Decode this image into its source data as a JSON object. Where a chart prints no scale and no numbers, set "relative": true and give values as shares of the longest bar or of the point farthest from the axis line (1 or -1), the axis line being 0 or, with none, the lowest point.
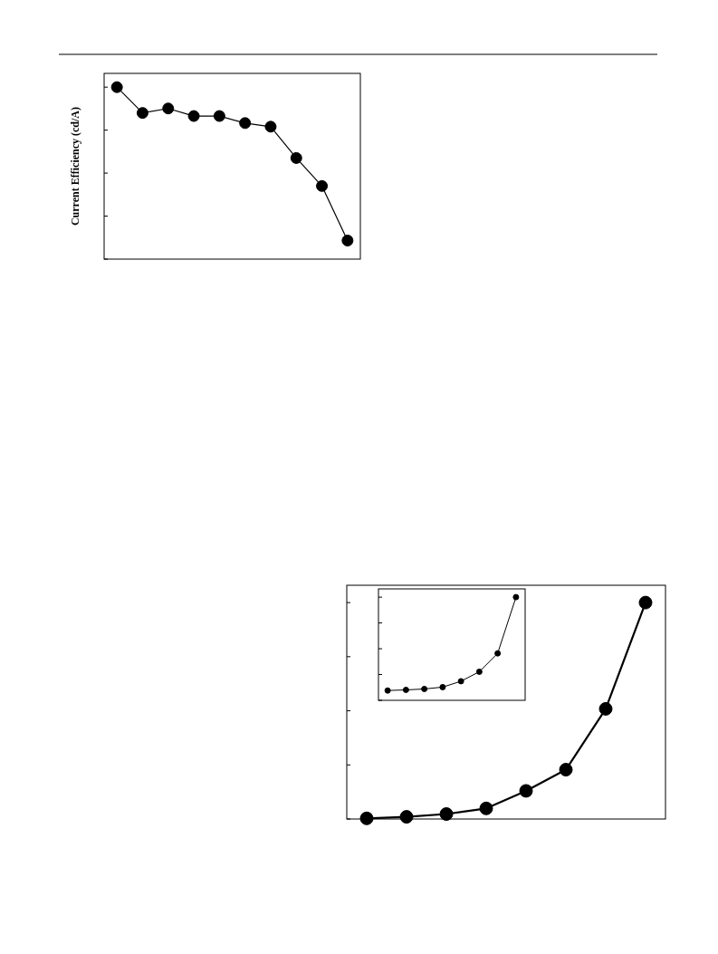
{
  "chart_data": [
    {
      "type": "line",
      "ylabel": "Current Efficiency (cd/A)",
      "relative": true,
      "marker": "circle",
      "tick_labels": false,
      "categories": [
        null,
        null,
        null,
        null,
        null,
        null,
        null,
        null,
        null,
        null
      ],
      "series": [
        {
          "color": "#000000",
          "values": [
            1.0,
            0.85,
            0.876,
            0.832,
            0.832,
            0.791,
            0.77,
            0.588,
            0.425,
            0.108
          ]
        }
      ]
    },
    {
      "type": "line",
      "relative": true,
      "marker": "circle",
      "tick_labels": false,
      "categories": [
        null,
        null,
        null,
        null,
        null,
        null,
        null,
        null
      ],
      "series": [
        {
          "color": "#000000",
          "values": [
            0.003,
            0.01,
            0.023,
            0.049,
            0.13,
            0.228,
            0.509,
            1.0
          ]
        }
      ]
    },
    {
      "type": "line",
      "relative": true,
      "marker": "circle",
      "tick_labels": false,
      "categories": [
        null,
        null,
        null,
        null,
        null,
        null,
        null,
        null
      ],
      "series": [
        {
          "color": "#000000",
          "values": [
            0.095,
            0.101,
            0.11,
            0.128,
            0.185,
            0.277,
            0.455,
            1.0
          ]
        }
      ]
    }
  ]
}
